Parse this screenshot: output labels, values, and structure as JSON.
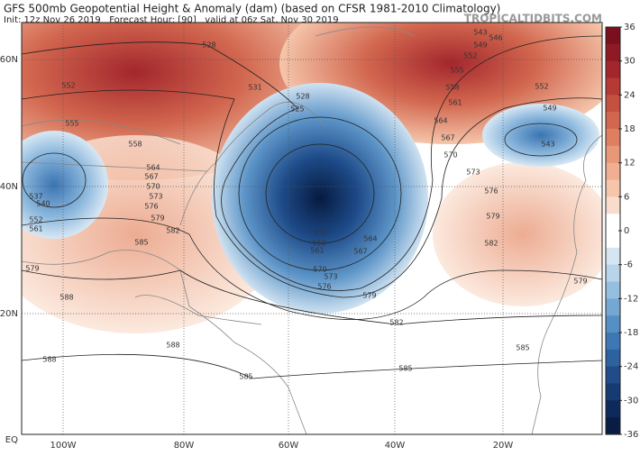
{
  "header": {
    "title": "GFS 500mb Geopotential Height & Anomaly (dam) (based on CFSR 1981-2010 Climatology)",
    "subtitle": "Init: 12z Nov 26 2019   Forecast Hour: [90]   valid at 06z Sat, Nov 30 2019",
    "watermark": "TROPICALTIDBITS.COM"
  },
  "map": {
    "lat_labels": [
      "60N",
      "40N",
      "20N",
      "EQ"
    ],
    "lon_labels": [
      "100W",
      "80W",
      "60W",
      "40W",
      "20W"
    ],
    "contour_labels": [
      "528",
      "543",
      "546",
      "549",
      "552",
      "555",
      "558",
      "561",
      "564",
      "567",
      "570",
      "573",
      "576",
      "579",
      "582",
      "552",
      "549",
      "543",
      "528",
      "525",
      "531",
      "552",
      "555",
      "558",
      "564",
      "567",
      "570",
      "573",
      "576",
      "579",
      "582",
      "585",
      "588",
      "588",
      "588",
      "585",
      "585",
      "585",
      "579",
      "579",
      "582",
      "579",
      "576",
      "573",
      "570",
      "564",
      "567",
      "561",
      "558",
      "552",
      "537",
      "540",
      "552",
      "561"
    ]
  },
  "colorbar": {
    "ticks": [
      36,
      30,
      24,
      18,
      12,
      6,
      0,
      -6,
      -12,
      -18,
      -24,
      -30,
      -36
    ],
    "colors": [
      "#7a0f1e",
      "#8e1a25",
      "#a3262c",
      "#b53a33",
      "#c4513f",
      "#d2674f",
      "#de7f62",
      "#e89777",
      "#f0af90",
      "#f5c6ab",
      "#f9dccb",
      "#ffffff",
      "#ffffff",
      "#d5e6f2",
      "#b7d4ea",
      "#95bfdf",
      "#74a8d2",
      "#5590c4",
      "#3d78b4",
      "#2d61a0",
      "#204c89",
      "#163a72",
      "#0e2a5c",
      "#081c44"
    ]
  }
}
